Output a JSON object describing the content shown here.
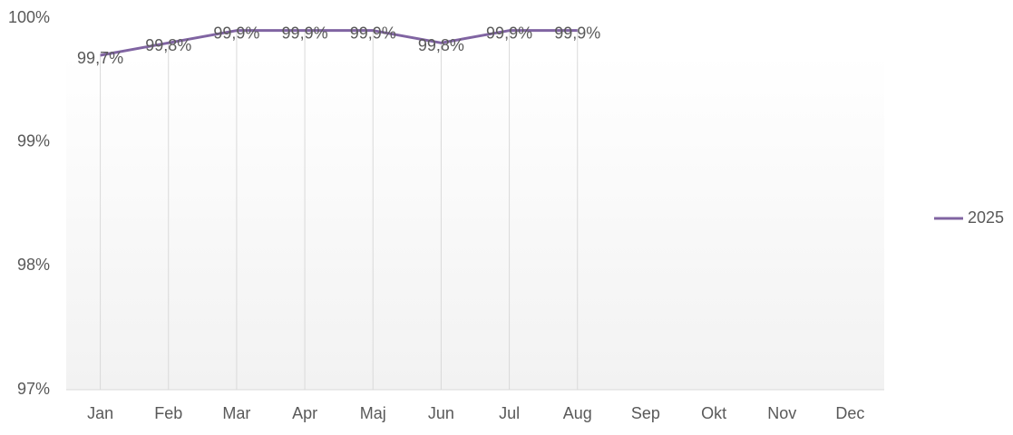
{
  "chart_data": {
    "type": "line",
    "categories": [
      "Jan",
      "Feb",
      "Mar",
      "Apr",
      "Maj",
      "Jun",
      "Jul",
      "Aug",
      "Sep",
      "Okt",
      "Nov",
      "Dec"
    ],
    "series": [
      {
        "name": "2025",
        "color": "#8064a2",
        "values": [
          99.7,
          99.8,
          99.9,
          99.9,
          99.9,
          99.8,
          99.9,
          99.9,
          null,
          null,
          null,
          null
        ],
        "value_labels": [
          "99,7%",
          "99,8%",
          "99,9%",
          "99,9%",
          "99,9%",
          "99,8%",
          "99,9%",
          "99,9%",
          null,
          null,
          null,
          null
        ]
      }
    ],
    "ylim": [
      97,
      100
    ],
    "yticks": [
      {
        "value": 97,
        "label": "97%"
      },
      {
        "value": 98,
        "label": "98%"
      },
      {
        "value": 99,
        "label": "99%"
      },
      {
        "value": 100,
        "label": "100%"
      }
    ],
    "grid": false,
    "drop_lines": true,
    "legend": "right"
  }
}
